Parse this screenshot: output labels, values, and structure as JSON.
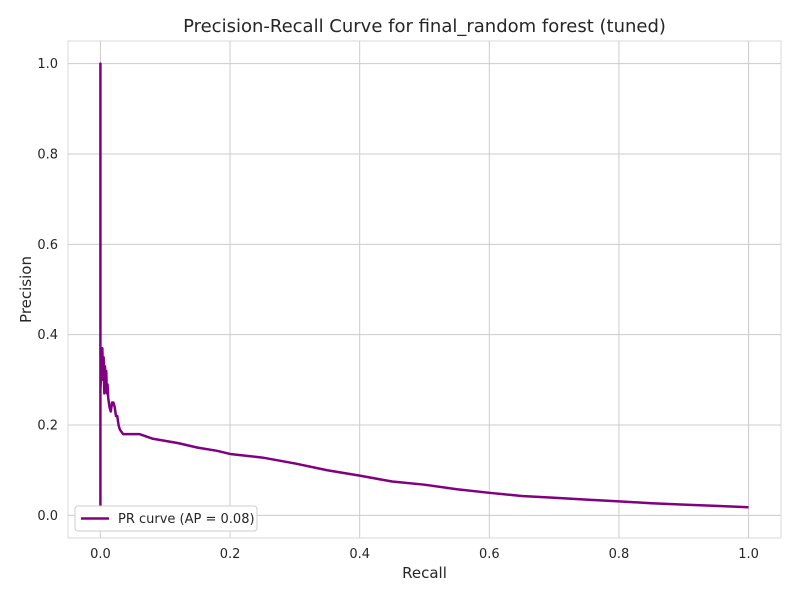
{
  "chart_data": {
    "type": "line",
    "title": "Precision-Recall Curve for final_random forest (tuned)",
    "xlabel": "Recall",
    "ylabel": "Precision",
    "xlim": [
      -0.05,
      1.05
    ],
    "ylim": [
      -0.05,
      1.05
    ],
    "xticks": [
      0.0,
      0.2,
      0.4,
      0.6,
      0.8,
      1.0
    ],
    "xtick_labels": [
      "0.0",
      "0.2",
      "0.4",
      "0.6",
      "0.8",
      "1.0"
    ],
    "yticks": [
      0.0,
      0.2,
      0.4,
      0.6,
      0.8,
      1.0
    ],
    "ytick_labels": [
      "0.0",
      "0.2",
      "0.4",
      "0.6",
      "0.8",
      "1.0"
    ],
    "grid": true,
    "legend_position": "lower-left",
    "series": [
      {
        "name": "PR curve (AP = 0.08)",
        "color": "#800080",
        "x": [
          0.0,
          0.0,
          0.0,
          0.0,
          0.002,
          0.003,
          0.004,
          0.005,
          0.006,
          0.007,
          0.008,
          0.009,
          0.01,
          0.011,
          0.012,
          0.014,
          0.016,
          0.018,
          0.02,
          0.022,
          0.024,
          0.026,
          0.028,
          0.03,
          0.035,
          0.04,
          0.05,
          0.06,
          0.07,
          0.08,
          0.1,
          0.12,
          0.15,
          0.18,
          0.2,
          0.25,
          0.3,
          0.35,
          0.4,
          0.45,
          0.5,
          0.55,
          0.6,
          0.65,
          0.7,
          0.75,
          0.8,
          0.85,
          0.9,
          0.95,
          1.0
        ],
        "y": [
          0.02,
          1.0,
          0.0,
          0.28,
          0.33,
          0.37,
          0.3,
          0.35,
          0.27,
          0.33,
          0.29,
          0.32,
          0.27,
          0.29,
          0.26,
          0.24,
          0.23,
          0.25,
          0.25,
          0.24,
          0.22,
          0.22,
          0.2,
          0.19,
          0.18,
          0.18,
          0.18,
          0.18,
          0.175,
          0.17,
          0.165,
          0.16,
          0.15,
          0.143,
          0.136,
          0.128,
          0.115,
          0.1,
          0.088,
          0.075,
          0.068,
          0.058,
          0.05,
          0.043,
          0.039,
          0.035,
          0.031,
          0.027,
          0.024,
          0.021,
          0.018
        ]
      }
    ]
  }
}
